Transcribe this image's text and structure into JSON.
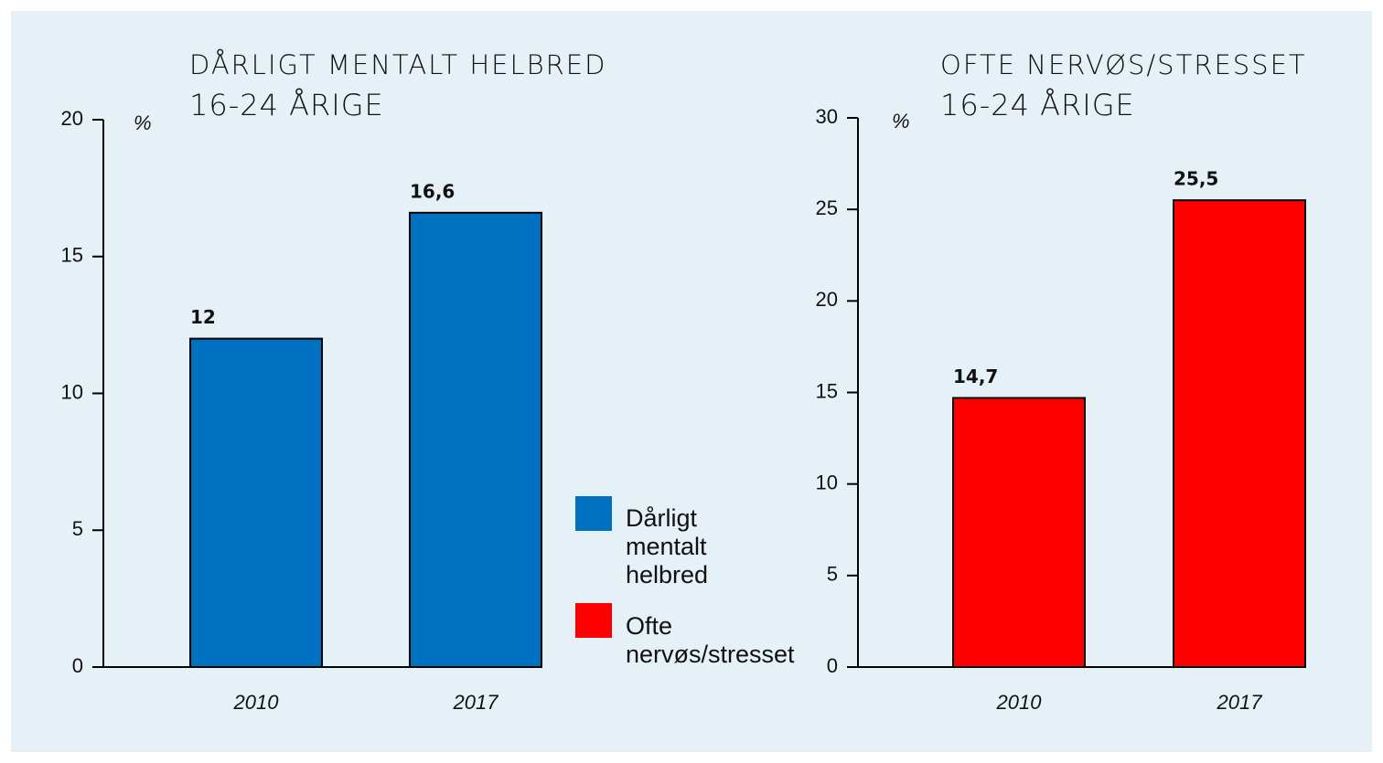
{
  "chart_data": [
    {
      "type": "bar",
      "title": "DÅRLIGT MENTALT HELBRED",
      "subtitle": "16-24 ÅRIGE",
      "y_label": "%",
      "categories": [
        "2010",
        "2017"
      ],
      "series": [
        {
          "name": "Dårligt mentalt helbred",
          "color": "#0070c0",
          "values": [
            12,
            16.6
          ],
          "value_labels": [
            "12",
            "16,6"
          ]
        }
      ],
      "ylim": [
        0,
        20
      ],
      "yticks": [
        0,
        5,
        10,
        15,
        20
      ]
    },
    {
      "type": "bar",
      "title": "OFTE NERVØS/STRESSET",
      "subtitle": "16-24 ÅRIGE",
      "y_label": "%",
      "categories": [
        "2010",
        "2017"
      ],
      "series": [
        {
          "name": "Ofte nervøs/stresset",
          "color": "#ff0000",
          "values": [
            14.7,
            25.5
          ],
          "value_labels": [
            "14,7",
            "25,5"
          ]
        }
      ],
      "ylim": [
        0,
        30
      ],
      "yticks": [
        0,
        5,
        10,
        15,
        20,
        25,
        30
      ]
    }
  ]
}
